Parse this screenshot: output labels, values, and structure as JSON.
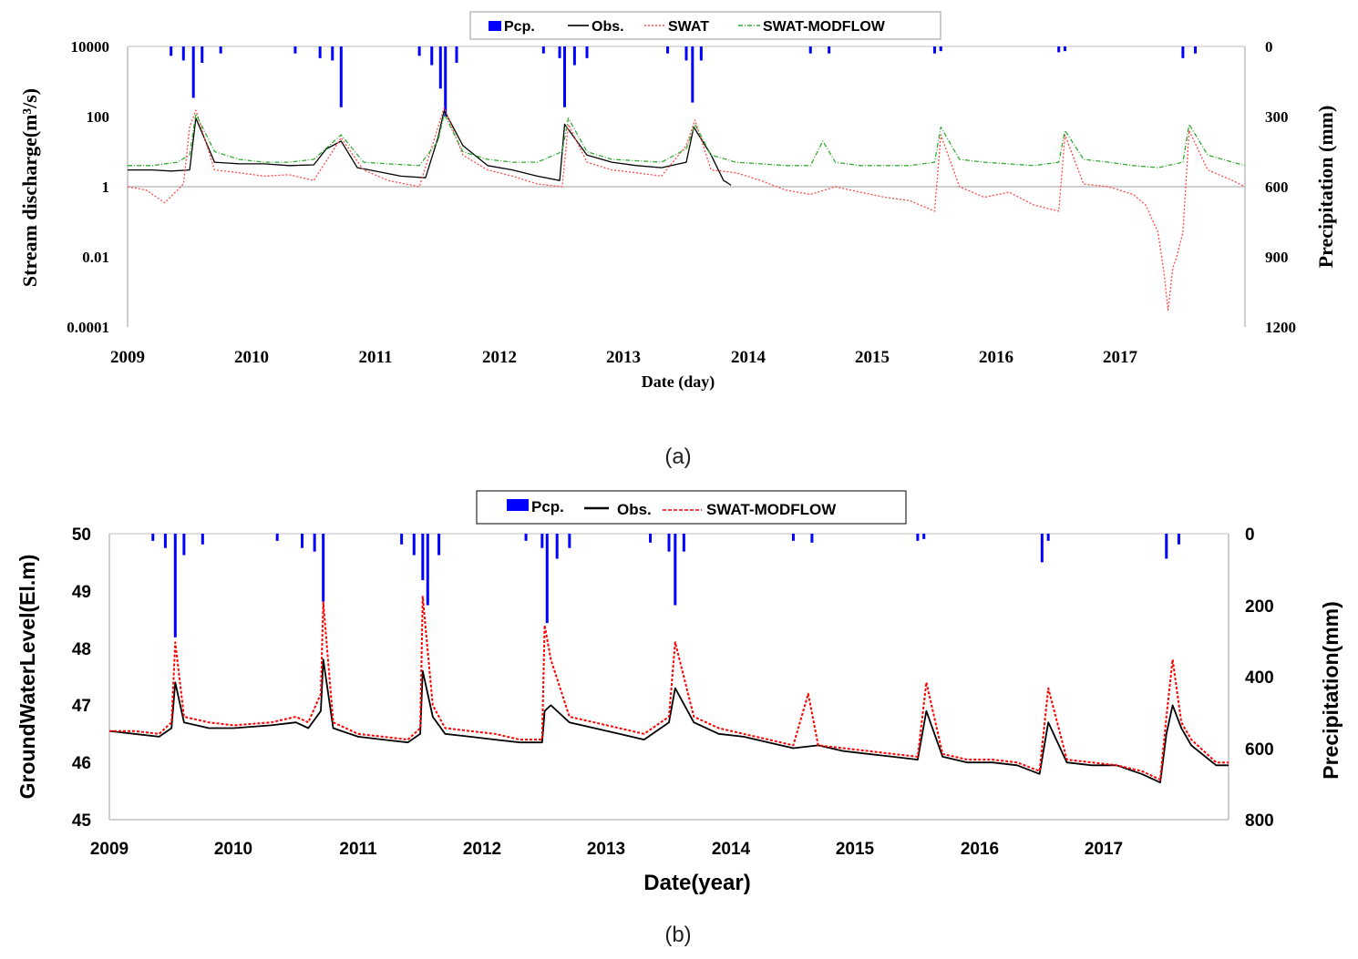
{
  "colors": {
    "pcp": "#0000ff",
    "obs": "#000000",
    "swat": "#ff4a4a",
    "swatmodflow_a": "#33aa33",
    "swatmodflow_b": "#ff0000",
    "axis": "#bfbfbf"
  },
  "chart_data": [
    {
      "type": "line",
      "panel_caption": "(a)",
      "xlabel": "Date (day)",
      "ylabel": "Stream discharge(m³/s)",
      "y2label": "Precipitation (mm)",
      "x_ticks": [
        "2009",
        "2010",
        "2011",
        "2012",
        "2013",
        "2014",
        "2015",
        "2016",
        "2017"
      ],
      "y_ticks": [
        "10000",
        "100",
        "1",
        "0.01",
        "0.0001"
      ],
      "y2_ticks": [
        "0",
        "300",
        "600",
        "900",
        "1200"
      ],
      "xlim": [
        2009.0,
        2018.0
      ],
      "ylim": [
        0.0001,
        10000
      ],
      "y_scale": "log",
      "y2lim": [
        1200,
        0
      ],
      "grid": false,
      "legend": {
        "position": "top-center",
        "entries": [
          "Pcp.",
          "Obs.",
          "SWAT",
          "SWAT-MODFLOW"
        ]
      },
      "series": [
        {
          "name": "Obs.",
          "x": [
            2009.0,
            2009.2,
            2009.35,
            2009.5,
            2009.55,
            2009.7,
            2009.9,
            2010.1,
            2010.3,
            2010.5,
            2010.6,
            2010.72,
            2010.85,
            2010.95,
            2011.2,
            2011.4,
            2011.5,
            2011.55,
            2011.7,
            2011.9,
            2012.1,
            2012.3,
            2012.48,
            2012.52,
            2012.7,
            2012.9,
            2013.1,
            2013.3,
            2013.5,
            2013.56,
            2013.7,
            2013.8,
            2013.83,
            2013.86
          ],
          "y": [
            3,
            3,
            2.8,
            3,
            90,
            5,
            4.5,
            4.5,
            4,
            4.2,
            12,
            20,
            3.5,
            3,
            2,
            1.8,
            25,
            150,
            15,
            4,
            3,
            2,
            1.5,
            60,
            8,
            5,
            4,
            3.5,
            5,
            50,
            8,
            1.5,
            1.3,
            1.1
          ]
        },
        {
          "name": "SWAT",
          "x": [
            2009.0,
            2009.15,
            2009.3,
            2009.45,
            2009.5,
            2009.55,
            2009.7,
            2009.9,
            2010.1,
            2010.3,
            2010.5,
            2010.72,
            2010.9,
            2011.1,
            2011.35,
            2011.5,
            2011.55,
            2011.7,
            2011.9,
            2012.1,
            2012.3,
            2012.5,
            2012.55,
            2012.7,
            2012.9,
            2013.1,
            2013.3,
            2013.5,
            2013.57,
            2013.7,
            2013.9,
            2014.1,
            2014.3,
            2014.5,
            2014.7,
            2014.9,
            2015.1,
            2015.3,
            2015.5,
            2015.55,
            2015.7,
            2015.9,
            2016.1,
            2016.3,
            2016.5,
            2016.55,
            2016.7,
            2016.9,
            2017.1,
            2017.2,
            2017.3,
            2017.35,
            2017.38,
            2017.42,
            2017.45,
            2017.5,
            2017.55,
            2017.7,
            2017.9,
            2018.0
          ],
          "y": [
            1,
            0.8,
            0.35,
            1.2,
            50,
            150,
            3,
            2.5,
            2,
            2.2,
            1.5,
            25,
            3,
            1.5,
            1,
            50,
            180,
            8,
            3,
            2,
            1.2,
            1,
            60,
            5,
            3,
            2.5,
            2,
            15,
            80,
            3,
            2.5,
            1.5,
            0.8,
            0.6,
            1,
            0.7,
            0.5,
            0.4,
            0.2,
            30,
            1,
            0.5,
            0.7,
            0.3,
            0.2,
            30,
            1.2,
            1,
            0.6,
            0.3,
            0.05,
            0.003,
            0.0003,
            0.005,
            0.01,
            0.05,
            40,
            3,
            1.5,
            1
          ]
        },
        {
          "name": "SWAT-MODFLOW",
          "x": [
            2009.0,
            2009.2,
            2009.4,
            2009.5,
            2009.55,
            2009.7,
            2009.9,
            2010.1,
            2010.3,
            2010.5,
            2010.72,
            2010.9,
            2011.1,
            2011.35,
            2011.5,
            2011.55,
            2011.7,
            2011.9,
            2012.1,
            2012.3,
            2012.5,
            2012.55,
            2012.7,
            2012.9,
            2013.1,
            2013.3,
            2013.5,
            2013.57,
            2013.7,
            2013.9,
            2014.1,
            2014.3,
            2014.5,
            2014.6,
            2014.7,
            2014.9,
            2015.1,
            2015.3,
            2015.5,
            2015.55,
            2015.7,
            2015.9,
            2016.1,
            2016.3,
            2016.5,
            2016.55,
            2016.7,
            2016.9,
            2017.1,
            2017.3,
            2017.5,
            2017.55,
            2017.7,
            2017.9,
            2018.0
          ],
          "y": [
            4,
            4,
            5,
            8,
            120,
            10,
            6,
            5,
            5,
            6,
            30,
            5,
            4.5,
            4,
            20,
            120,
            10,
            6,
            5,
            5,
            10,
            90,
            10,
            6,
            5.5,
            5,
            12,
            60,
            8,
            5,
            4.5,
            4,
            4,
            20,
            5,
            4,
            4,
            4,
            5,
            50,
            6,
            5,
            4.5,
            4,
            5,
            40,
            6,
            5,
            4,
            3.5,
            5,
            60,
            8,
            5,
            4
          ]
        },
        {
          "name": "Pcp.",
          "type": "bar",
          "x": [
            2009.35,
            2009.45,
            2009.53,
            2009.6,
            2009.75,
            2010.35,
            2010.55,
            2010.65,
            2010.72,
            2011.35,
            2011.45,
            2011.52,
            2011.56,
            2011.65,
            2012.35,
            2012.48,
            2012.52,
            2012.6,
            2012.7,
            2013.35,
            2013.5,
            2013.55,
            2013.62,
            2014.5,
            2014.65,
            2015.5,
            2015.55,
            2016.5,
            2016.55,
            2017.5,
            2017.6
          ],
          "y": [
            40,
            60,
            220,
            70,
            30,
            30,
            50,
            60,
            260,
            40,
            80,
            180,
            300,
            70,
            30,
            50,
            260,
            80,
            50,
            30,
            60,
            240,
            60,
            30,
            30,
            30,
            20,
            25,
            20,
            50,
            30
          ]
        }
      ]
    },
    {
      "type": "line",
      "panel_caption": "(b)",
      "xlabel": "Date(year)",
      "ylabel": "GroundWaterLevel(El.m)",
      "y2label": "Precipitation(mm)",
      "x_ticks": [
        "2009",
        "2010",
        "2011",
        "2012",
        "2013",
        "2014",
        "2015",
        "2016",
        "2017"
      ],
      "y_ticks": [
        "50",
        "49",
        "48",
        "47",
        "46",
        "45"
      ],
      "y2_ticks": [
        "0",
        "200",
        "400",
        "600",
        "800"
      ],
      "xlim": [
        2009.0,
        2018.0
      ],
      "ylim": [
        45,
        50
      ],
      "y2lim": [
        800,
        0
      ],
      "grid": false,
      "legend": {
        "position": "top-center",
        "entries": [
          "Pcp.",
          "Obs.",
          "SWAT-MODFLOW"
        ]
      },
      "series": [
        {
          "name": "Obs.",
          "x": [
            2009.0,
            2009.2,
            2009.4,
            2009.5,
            2009.53,
            2009.6,
            2009.8,
            2010.0,
            2010.3,
            2010.5,
            2010.6,
            2010.7,
            2010.72,
            2010.8,
            2011.0,
            2011.2,
            2011.4,
            2011.5,
            2011.52,
            2011.6,
            2011.7,
            2011.9,
            2012.1,
            2012.3,
            2012.48,
            2012.5,
            2012.55,
            2012.7,
            2012.9,
            2013.1,
            2013.3,
            2013.5,
            2013.55,
            2013.7,
            2013.9,
            2014.1,
            2014.3,
            2014.5,
            2014.7,
            2014.9,
            2015.1,
            2015.3,
            2015.5,
            2015.57,
            2015.7,
            2015.9,
            2016.1,
            2016.3,
            2016.48,
            2016.55,
            2016.7,
            2016.9,
            2017.1,
            2017.3,
            2017.45,
            2017.5,
            2017.55,
            2017.62,
            2017.7,
            2017.9,
            2018.0
          ],
          "y": [
            46.55,
            46.5,
            46.45,
            46.6,
            47.4,
            46.7,
            46.6,
            46.6,
            46.65,
            46.7,
            46.6,
            46.9,
            47.8,
            46.6,
            46.45,
            46.4,
            46.35,
            46.5,
            47.6,
            46.8,
            46.5,
            46.45,
            46.4,
            46.35,
            46.35,
            46.9,
            47.0,
            46.7,
            46.6,
            46.5,
            46.4,
            46.7,
            47.3,
            46.7,
            46.5,
            46.45,
            46.35,
            46.25,
            46.3,
            46.2,
            46.15,
            46.1,
            46.05,
            46.9,
            46.1,
            46.0,
            46.0,
            45.95,
            45.8,
            46.7,
            46.0,
            45.95,
            45.95,
            45.8,
            45.65,
            46.5,
            47.0,
            46.6,
            46.3,
            45.95,
            45.95
          ]
        },
        {
          "name": "SWAT-MODFLOW",
          "x": [
            2009.0,
            2009.2,
            2009.4,
            2009.5,
            2009.53,
            2009.6,
            2009.8,
            2010.0,
            2010.3,
            2010.5,
            2010.6,
            2010.7,
            2010.72,
            2010.8,
            2011.0,
            2011.2,
            2011.4,
            2011.5,
            2011.52,
            2011.6,
            2011.7,
            2011.9,
            2012.1,
            2012.3,
            2012.48,
            2012.5,
            2012.55,
            2012.7,
            2012.9,
            2013.1,
            2013.3,
            2013.5,
            2013.55,
            2013.7,
            2013.9,
            2014.1,
            2014.3,
            2014.5,
            2014.62,
            2014.7,
            2014.9,
            2015.1,
            2015.3,
            2015.5,
            2015.57,
            2015.7,
            2015.9,
            2016.1,
            2016.3,
            2016.48,
            2016.55,
            2016.7,
            2016.9,
            2017.1,
            2017.3,
            2017.45,
            2017.5,
            2017.55,
            2017.62,
            2017.7,
            2017.9,
            2018.0
          ],
          "y": [
            46.55,
            46.55,
            46.5,
            46.7,
            48.1,
            46.8,
            46.7,
            46.65,
            46.7,
            46.8,
            46.7,
            47.2,
            48.8,
            46.7,
            46.5,
            46.45,
            46.4,
            46.6,
            48.9,
            47.0,
            46.6,
            46.55,
            46.5,
            46.4,
            46.4,
            48.4,
            47.8,
            46.8,
            46.7,
            46.6,
            46.5,
            46.8,
            48.1,
            46.8,
            46.6,
            46.5,
            46.4,
            46.3,
            47.2,
            46.3,
            46.25,
            46.2,
            46.15,
            46.1,
            47.4,
            46.15,
            46.05,
            46.05,
            46.0,
            45.85,
            47.3,
            46.05,
            46.0,
            45.95,
            45.85,
            45.7,
            46.8,
            47.8,
            46.7,
            46.4,
            46.0,
            46.0
          ]
        },
        {
          "name": "Pcp.",
          "type": "bar",
          "x": [
            2009.35,
            2009.45,
            2009.53,
            2009.6,
            2009.75,
            2010.35,
            2010.55,
            2010.65,
            2010.72,
            2011.35,
            2011.45,
            2011.52,
            2011.56,
            2011.65,
            2012.35,
            2012.48,
            2012.52,
            2012.6,
            2012.7,
            2013.35,
            2013.5,
            2013.55,
            2013.62,
            2014.5,
            2014.65,
            2015.5,
            2015.55,
            2016.5,
            2016.55,
            2017.5,
            2017.6
          ],
          "y": [
            20,
            40,
            290,
            60,
            30,
            20,
            40,
            50,
            190,
            30,
            60,
            130,
            200,
            60,
            20,
            40,
            250,
            70,
            40,
            25,
            50,
            200,
            50,
            20,
            25,
            20,
            15,
            80,
            20,
            70,
            30
          ]
        }
      ]
    }
  ]
}
